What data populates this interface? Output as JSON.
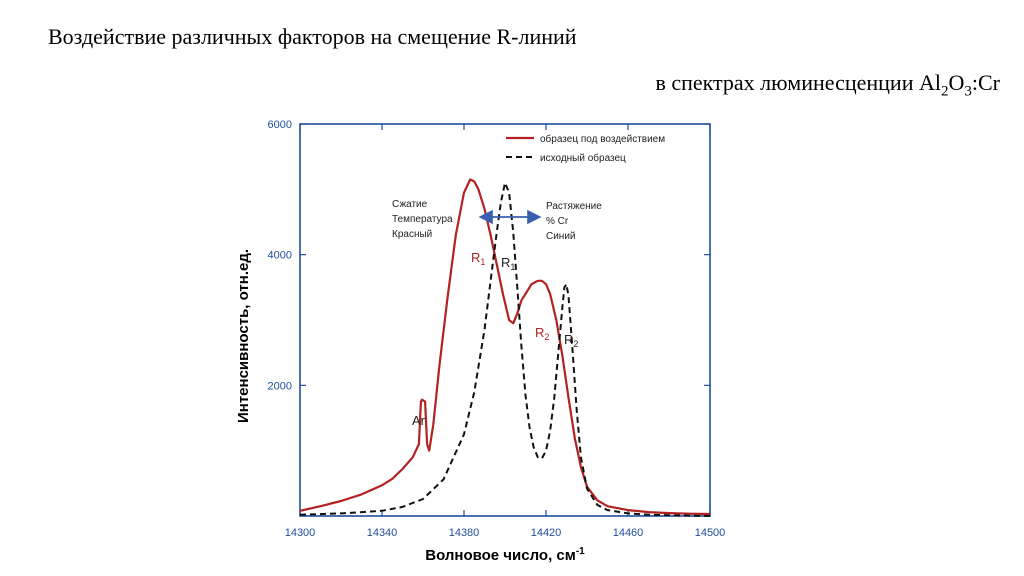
{
  "slide": {
    "title": "Воздействие различных факторов на смещение R-линий",
    "subtitle_prefix": "в спектрах люминесценции Al",
    "subtitle_sub1": "2",
    "subtitle_mid": "O",
    "subtitle_sub2": "3",
    "subtitle_suffix": ":Cr"
  },
  "chart_data": {
    "type": "line",
    "xlabel": "Волновое число, см",
    "xlabel_sup": "-1",
    "ylabel": "Интенсивность, отн.ед.",
    "xlim": [
      14300,
      14500
    ],
    "ylim": [
      0,
      6000
    ],
    "x_ticks": [
      14300,
      14340,
      14380,
      14420,
      14460,
      14500
    ],
    "x_tick_labels": [
      "14300",
      "14340",
      "14380",
      "14420",
      "14460",
      "14500"
    ],
    "y_ticks": [
      2000,
      4000,
      6000
    ],
    "y_tick_labels": [
      "2000",
      "4000",
      "6000"
    ],
    "legend_position": "top-right",
    "colors": {
      "axis": "#1f4e9c",
      "treated": "#b22222",
      "original": "#111111",
      "arrow": "#3a5fb0"
    },
    "series": [
      {
        "name": "образец под воздействием",
        "style": "solid",
        "color": "#b22222",
        "x": [
          14300,
          14310,
          14320,
          14330,
          14340,
          14345,
          14350,
          14355,
          14358,
          14359,
          14359.5,
          14361,
          14362,
          14363,
          14365,
          14368,
          14372,
          14376,
          14380,
          14383,
          14385,
          14387,
          14390,
          14393,
          14396,
          14399,
          14402,
          14404,
          14406,
          14408,
          14410,
          14413,
          14416,
          14418,
          14420,
          14422,
          14425,
          14428,
          14431,
          14434,
          14437,
          14440,
          14445,
          14450,
          14460,
          14470,
          14480,
          14490,
          14500
        ],
        "y": [
          80,
          150,
          230,
          330,
          470,
          570,
          720,
          900,
          1100,
          1750,
          1780,
          1750,
          1100,
          1000,
          1400,
          2300,
          3350,
          4300,
          4950,
          5150,
          5120,
          5000,
          4700,
          4300,
          3850,
          3400,
          3000,
          2950,
          3100,
          3300,
          3400,
          3550,
          3600,
          3600,
          3550,
          3400,
          3000,
          2450,
          1800,
          1200,
          750,
          450,
          240,
          150,
          90,
          60,
          45,
          35,
          30
        ]
      },
      {
        "name": "исходный образец",
        "style": "dashed",
        "color": "#111111",
        "x": [
          14300,
          14320,
          14340,
          14350,
          14360,
          14370,
          14380,
          14385,
          14390,
          14393,
          14396,
          14398,
          14400,
          14402,
          14404,
          14406,
          14408,
          14410,
          14412,
          14414,
          14416,
          14418,
          14420,
          14422,
          14424,
          14426,
          14428,
          14429,
          14430,
          14431,
          14433,
          14435,
          14437,
          14440,
          14445,
          14450,
          14460,
          14470,
          14480,
          14500
        ],
        "y": [
          20,
          40,
          80,
          140,
          260,
          560,
          1250,
          1900,
          2850,
          3600,
          4350,
          4800,
          5100,
          4950,
          4350,
          3500,
          2600,
          1850,
          1350,
          1050,
          900,
          880,
          1000,
          1300,
          1800,
          2500,
          3200,
          3500,
          3550,
          3350,
          2500,
          1600,
          900,
          420,
          170,
          90,
          40,
          20,
          10,
          0
        ]
      }
    ],
    "annotations": {
      "ar_label": "Ar",
      "r1_red": "R",
      "r1_red_sub": "1",
      "r2_red": "R",
      "r2_red_sub": "2",
      "r1_black": "R",
      "r1_black_sub": "1",
      "r2_black": "R",
      "r2_black_sub": "2",
      "left_lines": [
        "Сжатие",
        "Температура",
        "Красный"
      ],
      "right_lines": [
        "Растяжение",
        "% Cr",
        "Синий"
      ]
    }
  }
}
